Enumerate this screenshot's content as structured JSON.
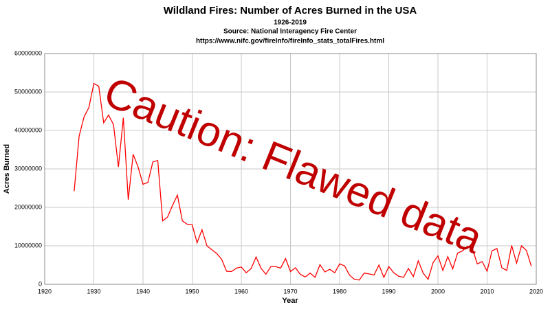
{
  "chart_data": {
    "type": "line",
    "title": "Wildland Fires: Number of Acres Burned in the USA",
    "subtitle": "1926-2019",
    "source": "Source: National Interagency Fire Center",
    "url": "https://www.nifc.gov/fireInfo/fireInfo_stats_totalFires.html",
    "xlabel": "Year",
    "ylabel": "Acres Burned",
    "annotation": "Caution: Flawed data",
    "annotation_color": "#c00000",
    "x": [
      1926,
      1927,
      1928,
      1929,
      1930,
      1931,
      1932,
      1933,
      1934,
      1935,
      1936,
      1937,
      1938,
      1939,
      1940,
      1941,
      1942,
      1943,
      1944,
      1945,
      1946,
      1947,
      1948,
      1949,
      1950,
      1951,
      1952,
      1953,
      1954,
      1955,
      1956,
      1957,
      1958,
      1959,
      1960,
      1961,
      1962,
      1963,
      1964,
      1965,
      1966,
      1967,
      1968,
      1969,
      1970,
      1971,
      1972,
      1973,
      1974,
      1975,
      1976,
      1977,
      1978,
      1979,
      1980,
      1981,
      1982,
      1983,
      1984,
      1985,
      1986,
      1987,
      1988,
      1989,
      1990,
      1991,
      1992,
      1993,
      1994,
      1995,
      1996,
      1997,
      1998,
      1999,
      2000,
      2001,
      2002,
      2003,
      2004,
      2005,
      2006,
      2007,
      2008,
      2009,
      2010,
      2011,
      2012,
      2013,
      2014,
      2015,
      2016,
      2017,
      2018,
      2019
    ],
    "series": [
      {
        "color": "#ff0000",
        "values": [
          24200000,
          38500000,
          43500000,
          46000000,
          52200000,
          51500000,
          42000000,
          44000000,
          41500000,
          30500000,
          43300000,
          22000000,
          33800000,
          30500000,
          26000000,
          26500000,
          31800000,
          32200000,
          16500000,
          17500000,
          20500000,
          23200000,
          16500000,
          15600000,
          15500000,
          10800000,
          14200000,
          10000000,
          9000000,
          8000000,
          6500000,
          3400000,
          3300000,
          4200000,
          4500000,
          3000000,
          4100000,
          7100000,
          4200000,
          2600000,
          4600000,
          4600000,
          4200000,
          6700000,
          3300000,
          4300000,
          2600000,
          1900000,
          2900000,
          1800000,
          5100000,
          3200000,
          3900000,
          3000000,
          5300000,
          4800000,
          2400000,
          1300000,
          1100000,
          2900000,
          2700000,
          2400000,
          5000000,
          1800000,
          4600000,
          3000000,
          2100000,
          1800000,
          4100000,
          2000000,
          6100000,
          2900000,
          1300000,
          5600000,
          7400000,
          3600000,
          7200000,
          4000000,
          8100000,
          8700000,
          9900000,
          9300000,
          5300000,
          5900000,
          3400000,
          8700000,
          9300000,
          4300000,
          3600000,
          10100000,
          5500000,
          10000000,
          8800000,
          4700000
        ]
      }
    ],
    "xlim": [
      1920,
      2020
    ],
    "xticks": [
      1920,
      1930,
      1940,
      1950,
      1960,
      1970,
      1980,
      1990,
      2000,
      2010,
      2020
    ],
    "ylim": [
      0,
      60000000
    ],
    "yticks": [
      0,
      10000000,
      20000000,
      30000000,
      40000000,
      50000000,
      60000000
    ],
    "grid": true
  }
}
